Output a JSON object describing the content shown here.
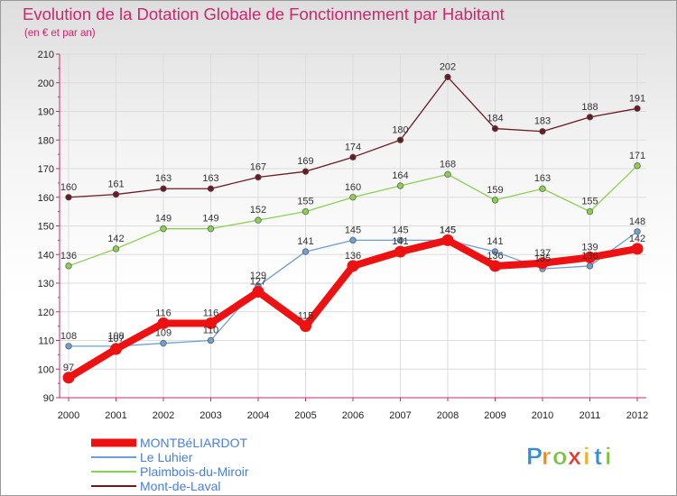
{
  "chart_data": {
    "type": "line",
    "title": "Evolution de la Dotation Globale de Fonctionnement par Habitant",
    "subtitle": "(en € et par an)",
    "xlabel": "",
    "ylabel": "",
    "x": [
      2000,
      2001,
      2002,
      2003,
      2004,
      2005,
      2006,
      2007,
      2008,
      2009,
      2010,
      2011,
      2012
    ],
    "ylim": [
      90,
      210
    ],
    "yticks": [
      90,
      100,
      110,
      120,
      130,
      140,
      150,
      160,
      170,
      180,
      190,
      200,
      210
    ],
    "series": [
      {
        "name": "Mont-de-Laval",
        "color": "#6b1a22",
        "values": [
          160,
          161,
          163,
          163,
          167,
          169,
          174,
          180,
          202,
          184,
          183,
          188,
          191
        ]
      },
      {
        "name": "Plaimbois-du-Miroir",
        "color": "#8ad14f",
        "values": [
          136,
          142,
          149,
          149,
          152,
          155,
          160,
          164,
          168,
          159,
          163,
          155,
          171
        ]
      },
      {
        "name": "Le Luhier",
        "color": "#6f9fd2",
        "values": [
          108,
          108,
          109,
          110,
          129,
          141,
          145,
          145,
          145,
          141,
          135,
          136,
          148
        ]
      },
      {
        "name": "MONTBéLIARDOT",
        "color": "#ee1111",
        "values": [
          97,
          107,
          116,
          116,
          127,
          115,
          136,
          141,
          145,
          136,
          137,
          139,
          142
        ]
      }
    ],
    "legend": [
      {
        "name": "MONTBéLIARDOT",
        "color": "#ee1111",
        "text_color": "#4a7fd9"
      },
      {
        "name": "Le Luhier",
        "color": "#6f9fd2",
        "text_color": "#4a7fd9"
      },
      {
        "name": "Plaimbois-du-Miroir",
        "color": "#8ad14f",
        "text_color": "#4a7fd9"
      },
      {
        "name": "Mont-de-Laval",
        "color": "#6b1a22",
        "text_color": "#4a7fd9"
      }
    ],
    "legend_position": "bottom-left"
  },
  "brand": {
    "letters": [
      "P",
      "r",
      "o",
      "x",
      "i",
      "t",
      "i"
    ],
    "colors": [
      "#2f8fd8",
      "#e8892a",
      "#7cc242",
      "#e8322a",
      "#f0b020",
      "#2f8fd8",
      "#7cc242"
    ]
  }
}
